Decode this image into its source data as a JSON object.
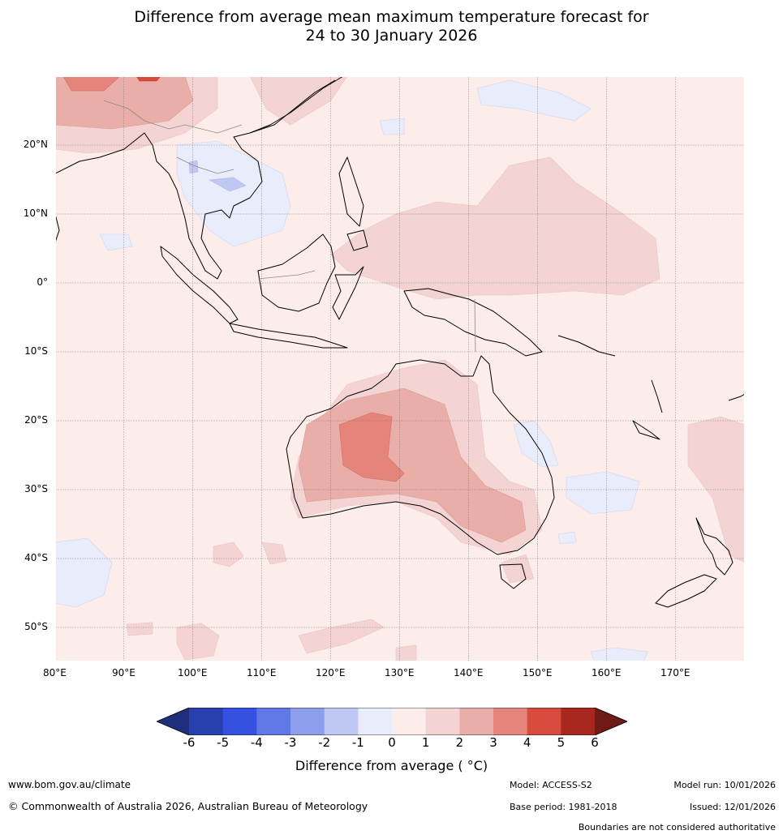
{
  "title": {
    "line1": "Difference from average mean maximum temperature forecast for",
    "line2": "24 to 30 January 2026"
  },
  "map": {
    "lat_labels": [
      "20°N",
      "10°N",
      "0°",
      "10°S",
      "20°S",
      "30°S",
      "40°S",
      "50°S"
    ],
    "lon_labels": [
      "80°E",
      "90°E",
      "100°E",
      "110°E",
      "120°E",
      "130°E",
      "140°E",
      "150°E",
      "160°E",
      "170°E"
    ],
    "extent": {
      "lon_min": 80,
      "lon_max": 180,
      "lat_min": -55,
      "lat_max": 30
    },
    "background_anomaly_class": "0 to 1"
  },
  "colorbar": {
    "ticks": [
      "-6",
      "-5",
      "-4",
      "-3",
      "-2",
      "-1",
      "0",
      "1",
      "2",
      "3",
      "4",
      "5",
      "6"
    ],
    "colors": [
      "#1f2f7c",
      "#2a3fae",
      "#3551e0",
      "#5f78e6",
      "#8c9eec",
      "#bfc8f3",
      "#e8ecfb",
      "#fcecea",
      "#f4d4d3",
      "#eaaea9",
      "#e4847a",
      "#d64b3d",
      "#a8281f",
      "#6e1a17"
    ],
    "label": "Difference from average ( °C)"
  },
  "footer": {
    "website": "www.bom.gov.au/climate",
    "copyright": "© Commonwealth of Australia 2026, Australian Bureau of Meteorology",
    "model": "Model: ACCESS-S2",
    "base_period": "Base period: 1981-2018",
    "model_run": "Model run: 10/01/2026",
    "issued": "Issued: 12/01/2026",
    "disclaimer": "Boundaries are not considered authoritative"
  }
}
